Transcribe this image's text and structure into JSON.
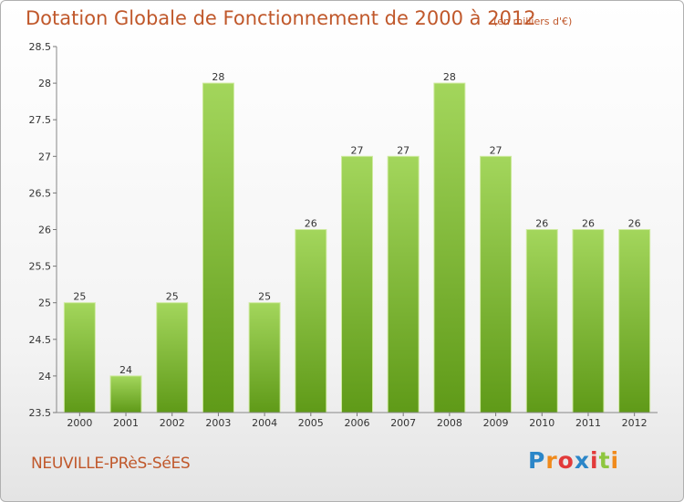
{
  "chart_data": {
    "type": "bar",
    "title": "Dotation Globale de Fonctionnement de 2000 à 2012",
    "subtitle": "(en milliers d'€)",
    "categories": [
      "2000",
      "2001",
      "2002",
      "2003",
      "2004",
      "2005",
      "2006",
      "2007",
      "2008",
      "2009",
      "2010",
      "2011",
      "2012"
    ],
    "values": [
      25,
      24,
      25,
      28,
      25,
      26,
      27,
      27,
      28,
      27,
      26,
      26,
      26
    ],
    "ylim": [
      23.5,
      28.5
    ],
    "yticks": [
      23.5,
      24,
      24.5,
      25,
      25.5,
      26,
      26.5,
      27,
      27.5,
      28,
      28.5
    ],
    "grid": false,
    "colors": {
      "bar_top": "#a3d65c",
      "bar_bottom": "#5f9a18",
      "bar_edge": "#cfeaa0",
      "title": "#c0582b"
    }
  },
  "footer": {
    "town": "NEUVILLE-PRèS-SéES",
    "logo": {
      "letters": [
        "P",
        "r",
        "o",
        "x",
        "i",
        "t",
        "i"
      ],
      "colors": [
        "#2b86c8",
        "#f08a1c",
        "#e23a3a",
        "#2b86c8",
        "#e23a3a",
        "#8ec63f",
        "#f08a1c"
      ]
    }
  }
}
